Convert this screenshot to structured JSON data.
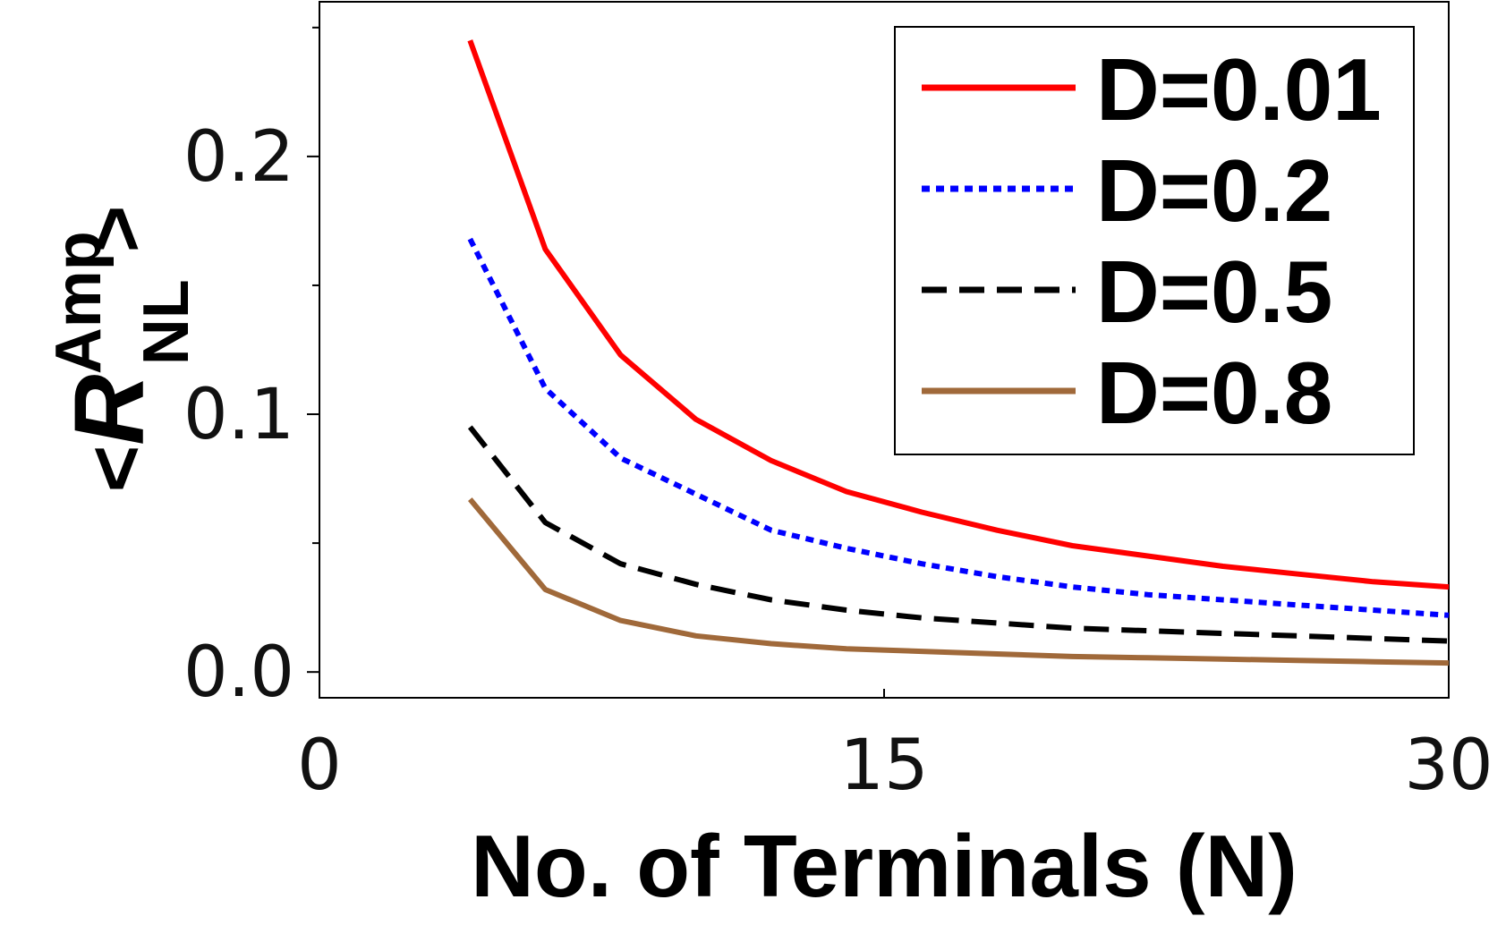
{
  "chart_data": {
    "type": "line",
    "title": "",
    "xlabel": "No. of Terminals (N)",
    "ylabel": {
      "open": "<",
      "main": "R",
      "superscript": "Amp",
      "subscript": "NL",
      "close": ">"
    },
    "xlim": [
      0,
      30
    ],
    "ylim": [
      -0.01,
      0.26
    ],
    "xticks": [
      0,
      15,
      30
    ],
    "xtick_labels": [
      "0",
      "15",
      "30"
    ],
    "yticks": [
      0.0,
      0.1,
      0.2
    ],
    "ytick_labels": [
      "0.0",
      "0.1",
      "0.2"
    ],
    "grid": false,
    "legend_position": "top-right",
    "x": [
      4,
      6,
      8,
      10,
      12,
      14,
      16,
      18,
      20,
      22,
      24,
      26,
      28,
      30
    ],
    "series": [
      {
        "name": "D=0.01",
        "color": "#ff0000",
        "style": "solid",
        "values": [
          0.245,
          0.164,
          0.123,
          0.098,
          0.082,
          0.07,
          0.062,
          0.055,
          0.049,
          0.045,
          0.041,
          0.038,
          0.035,
          0.033
        ]
      },
      {
        "name": "D=0.2",
        "color": "#0000ff",
        "style": "dotted",
        "values": [
          0.168,
          0.11,
          0.083,
          0.069,
          0.055,
          0.048,
          0.042,
          0.037,
          0.033,
          0.03,
          0.028,
          0.026,
          0.024,
          0.022
        ]
      },
      {
        "name": "D=0.5",
        "color": "#000000",
        "style": "dashed",
        "values": [
          0.095,
          0.058,
          0.042,
          0.034,
          0.028,
          0.024,
          0.021,
          0.019,
          0.017,
          0.016,
          0.015,
          0.014,
          0.013,
          0.012
        ]
      },
      {
        "name": "D=0.8",
        "color": "#a0693a",
        "style": "solid",
        "values": [
          0.067,
          0.032,
          0.02,
          0.014,
          0.011,
          0.009,
          0.008,
          0.007,
          0.006,
          0.0055,
          0.005,
          0.0045,
          0.004,
          0.0035
        ]
      }
    ]
  }
}
